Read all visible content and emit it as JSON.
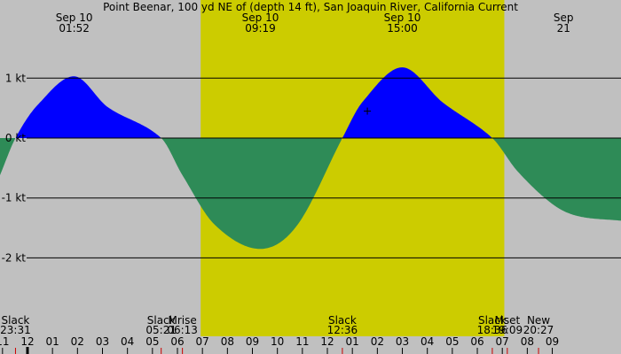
{
  "chart_data": {
    "type": "area",
    "title": "Point Beenar, 100 yd NE of (depth 14 ft), San Joaquin River, California Current",
    "xlim_hours": [
      -1.1,
      23.75
    ],
    "ylim": [
      -3.0,
      2.25
    ],
    "y_ticks": [
      {
        "value": 1,
        "label": "1 kt"
      },
      {
        "value": 0,
        "label": "0 kt"
      },
      {
        "value": -1,
        "label": "-1 kt"
      },
      {
        "value": -2,
        "label": "-2 kt"
      }
    ],
    "daylight_band_hours": [
      6.93,
      19.08
    ],
    "series": [
      {
        "values": [
          [
            -1.1,
            -0.62
          ],
          [
            -0.48,
            0.0
          ],
          [
            0.4,
            0.55
          ],
          [
            1.87,
            1.03
          ],
          [
            3.2,
            0.52
          ],
          [
            5.35,
            0.0
          ],
          [
            6.2,
            -0.62
          ],
          [
            7.5,
            -1.45
          ],
          [
            9.32,
            -1.85
          ],
          [
            10.8,
            -1.45
          ],
          [
            12.6,
            0.0
          ],
          [
            13.4,
            0.6
          ],
          [
            15.0,
            1.18
          ],
          [
            16.6,
            0.6
          ],
          [
            18.6,
            0.0
          ],
          [
            19.6,
            -0.55
          ],
          [
            21.0,
            -1.1
          ],
          [
            22.0,
            -1.3
          ],
          [
            23.75,
            -1.38
          ]
        ]
      }
    ],
    "top_labels": [
      {
        "hour": 1.87,
        "date": "Sep 10",
        "time": "01:52"
      },
      {
        "hour": 9.32,
        "date": "Sep 10",
        "time": "09:19"
      },
      {
        "hour": 15.0,
        "date": "Sep 10",
        "time": "15:00"
      },
      {
        "hour": 21.45,
        "date": "Sep",
        "time": "21"
      }
    ],
    "bottom_events": [
      {
        "hour": -0.48,
        "name": "Slack",
        "time": "23:31"
      },
      {
        "hour": 5.35,
        "name": "Slack",
        "time": "05:21"
      },
      {
        "hour": 6.2,
        "name": "Mrise",
        "time": "06:13"
      },
      {
        "hour": 12.6,
        "name": "Slack",
        "time": "12:36"
      },
      {
        "hour": 18.6,
        "name": "Slack",
        "time": "18:36"
      },
      {
        "hour": 19.2,
        "name": "Mset",
        "time": "19:09"
      },
      {
        "hour": 20.45,
        "name": "New",
        "time": "20:27"
      }
    ],
    "hour_ticks": [
      "11",
      "12",
      "01",
      "02",
      "03",
      "04",
      "05",
      "06",
      "07",
      "08",
      "09",
      "10",
      "11",
      "12",
      "01",
      "02",
      "03",
      "04",
      "05",
      "06",
      "07",
      "08",
      "09"
    ],
    "hour_tick_start": -1,
    "current_marker_hour": 13.6,
    "current_marker_value": 0.45
  },
  "colors": {
    "background": "#c0c0c0",
    "daylight": "#cccc00",
    "flood": "#0000ff",
    "ebb": "#2e8b57",
    "gridline": "#000000",
    "event_tick": "#cc0000",
    "now_tick": "#000000"
  }
}
